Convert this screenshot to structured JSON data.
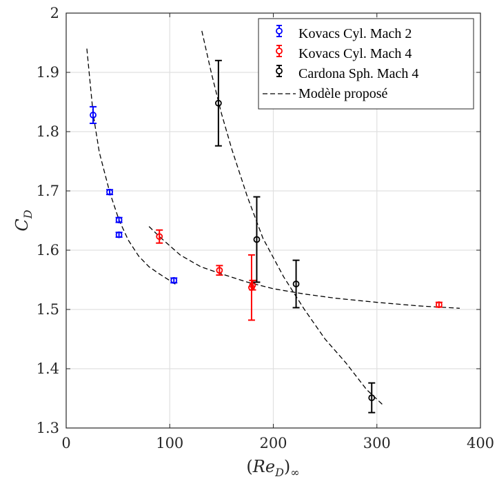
{
  "chart_data": {
    "type": "scatter",
    "xlabel": "(Re_D)∞",
    "xlabel_parts": {
      "open": "(",
      "var": "Re",
      "sub": "D",
      "close": ")",
      "infsub": "∞"
    },
    "ylabel": "C_D",
    "ylabel_parts": {
      "var": "C",
      "sub": "D"
    },
    "xlim": [
      0,
      400
    ],
    "ylim": [
      1.3,
      2.0
    ],
    "xticks": [
      0,
      100,
      200,
      300,
      400
    ],
    "xtick_labels": [
      "0",
      "100",
      "200",
      "300",
      "400"
    ],
    "yticks": [
      1.3,
      1.4,
      1.5,
      1.6,
      1.7,
      1.8,
      1.9,
      2.0
    ],
    "ytick_labels": [
      "1.3",
      "1.4",
      "1.5",
      "1.6",
      "1.7",
      "1.8",
      "1.9",
      "2"
    ],
    "grid": true,
    "legend_position": "top-right",
    "series": [
      {
        "name": "Kovacs Cyl. Mach 2",
        "color": "#0000ff",
        "marker": "circle",
        "x": [
          26,
          42,
          51,
          51,
          104
        ],
        "y": [
          1.828,
          1.698,
          1.651,
          1.626,
          1.549
        ],
        "err": [
          0.014,
          0.004,
          0.004,
          0.004,
          0.004
        ]
      },
      {
        "name": "Kovacs Cyl. Mach 4",
        "color": "#ff0000",
        "marker": "circle",
        "x": [
          90,
          148,
          179,
          180,
          360
        ],
        "y": [
          1.623,
          1.566,
          1.537,
          1.541,
          1.508
        ],
        "err": [
          0.011,
          0.008,
          0.055,
          0.008,
          0.004
        ]
      },
      {
        "name": "Cardona Sph. Mach 4",
        "color": "#000000",
        "marker": "circle",
        "x": [
          147,
          184,
          222,
          295
        ],
        "y": [
          1.848,
          1.618,
          1.543,
          1.351
        ],
        "err": [
          0.072,
          0.072,
          0.04,
          0.025
        ]
      }
    ],
    "model": {
      "name": "Modèle proposé",
      "color": "#000000",
      "style": "dashed",
      "curves": [
        {
          "x": [
            20,
            26,
            32,
            42,
            51,
            60,
            70,
            80,
            90,
            106
          ],
          "y": [
            1.94,
            1.83,
            1.765,
            1.698,
            1.651,
            1.617,
            1.59,
            1.572,
            1.56,
            1.542
          ]
        },
        {
          "x": [
            80,
            90,
            110,
            130,
            150,
            175,
            200,
            230,
            260,
            300,
            340,
            380
          ],
          "y": [
            1.64,
            1.623,
            1.592,
            1.572,
            1.56,
            1.546,
            1.535,
            1.526,
            1.519,
            1.512,
            1.506,
            1.502
          ]
        },
        {
          "x": [
            131,
            140,
            150,
            160,
            175,
            190,
            210,
            230,
            250,
            270,
            290,
            307
          ],
          "y": [
            1.97,
            1.9,
            1.83,
            1.77,
            1.69,
            1.62,
            1.555,
            1.5,
            1.45,
            1.41,
            1.365,
            1.337
          ]
        }
      ]
    }
  }
}
